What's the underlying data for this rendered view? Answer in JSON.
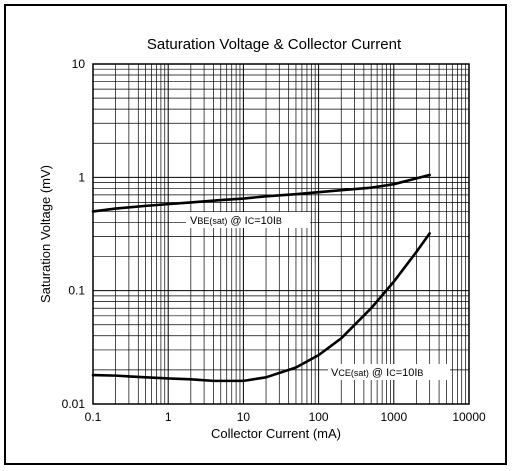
{
  "chart_data": {
    "type": "line",
    "title": "Saturation Voltage & Collector Current",
    "xlabel": "Collector Current (mA)",
    "ylabel": "Saturation Voltage (mV)",
    "x_scale": "log",
    "y_scale": "log",
    "xlim": [
      0.1,
      10000
    ],
    "ylim": [
      0.01,
      10
    ],
    "x_ticks": [
      "0.1",
      "1",
      "10",
      "100",
      "1000",
      "10000"
    ],
    "y_ticks": [
      "0.01",
      "0.1",
      "1",
      "10"
    ],
    "grid": true,
    "series": [
      {
        "label_main": "V",
        "label_sub": "BE(sat)",
        "label_mid": " @ I",
        "label_sub2": "C",
        "label_end": "=10I",
        "label_sub3": "B",
        "x": [
          0.1,
          0.2,
          0.5,
          1,
          2,
          5,
          10,
          20,
          50,
          100,
          200,
          500,
          1000,
          2000,
          3000
        ],
        "y": [
          0.5,
          0.53,
          0.56,
          0.58,
          0.6,
          0.63,
          0.65,
          0.68,
          0.71,
          0.74,
          0.77,
          0.81,
          0.87,
          0.98,
          1.05
        ]
      },
      {
        "label_main": "V",
        "label_sub": "CE(sat)",
        "label_mid": " @ I",
        "label_sub2": "C",
        "label_end": "=10I",
        "label_sub3": "B",
        "x": [
          0.1,
          0.2,
          0.5,
          1,
          2,
          4,
          6,
          10,
          20,
          50,
          100,
          200,
          500,
          1000,
          2000,
          3000
        ],
        "y": [
          0.018,
          0.0178,
          0.0172,
          0.0168,
          0.0165,
          0.016,
          0.016,
          0.016,
          0.0172,
          0.021,
          0.027,
          0.038,
          0.07,
          0.12,
          0.22,
          0.32
        ]
      }
    ]
  }
}
